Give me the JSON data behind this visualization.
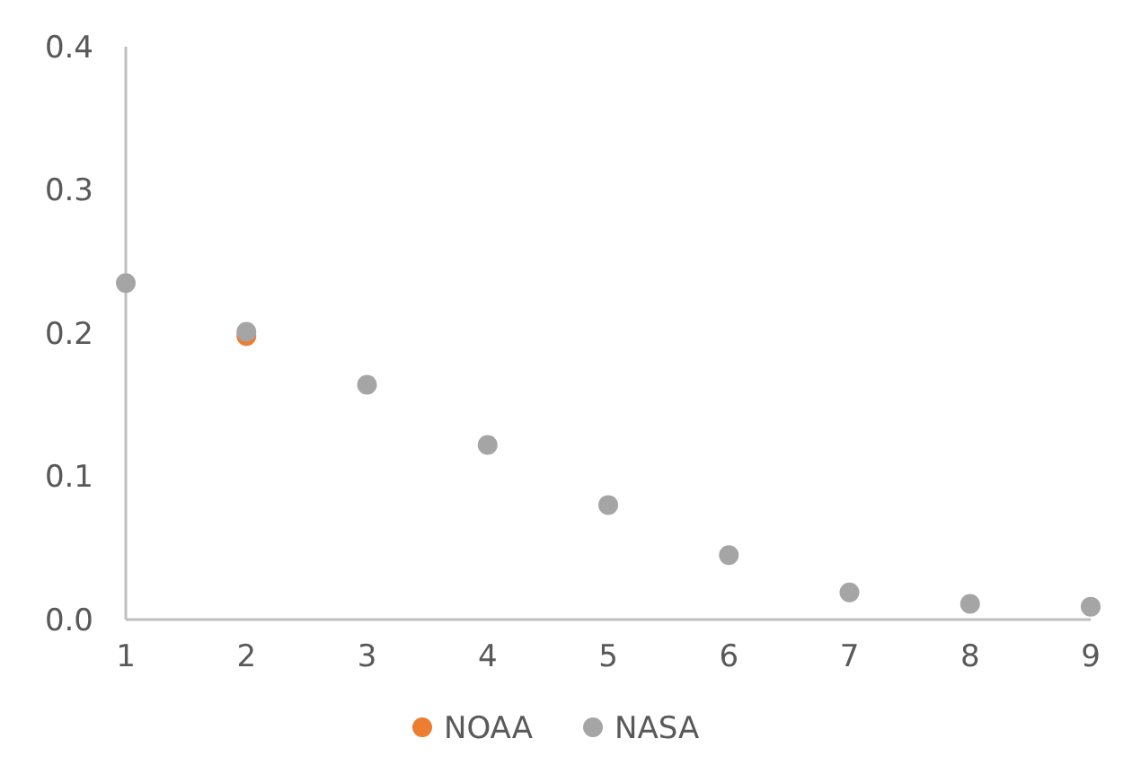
{
  "chart_data": {
    "type": "scatter",
    "x": [
      1,
      2,
      3,
      4,
      5,
      6,
      7,
      8,
      9
    ],
    "series": [
      {
        "name": "NOAA",
        "color": "#ed7d31",
        "values": [
          null,
          0.198,
          null,
          null,
          null,
          null,
          null,
          null,
          null
        ]
      },
      {
        "name": "NASA",
        "color": "#a5a5a5",
        "values": [
          0.235,
          0.201,
          0.164,
          0.122,
          0.08,
          0.045,
          0.019,
          0.011,
          0.009
        ]
      }
    ],
    "xlim": [
      1,
      9
    ],
    "xticks": [
      1,
      2,
      3,
      4,
      5,
      6,
      7,
      8,
      9
    ],
    "ylim": [
      0,
      0.4
    ],
    "yticks": [
      {
        "value": 0,
        "label": "0.0"
      },
      {
        "value": 0.1,
        "label": "0.1"
      },
      {
        "value": 0.2,
        "label": "0.2"
      },
      {
        "value": 0.3,
        "label": "0.3"
      },
      {
        "value": 0.4,
        "label": "0.4"
      }
    ],
    "grid": false,
    "legend": "bottom",
    "marker": "circle"
  }
}
